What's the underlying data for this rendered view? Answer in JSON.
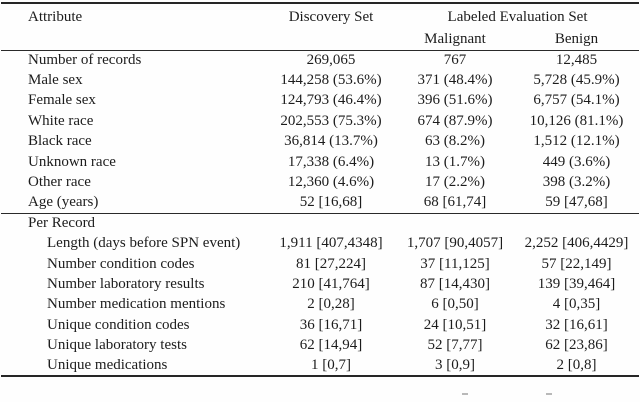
{
  "colors": {
    "background": "#fefefe",
    "text": "#1c1c1c",
    "rule": "#262626"
  },
  "table": {
    "header": {
      "attribute": "Attribute",
      "discovery": "Discovery Set",
      "evaluation_group": "Labeled Evaluation Set",
      "malignant": "Malignant",
      "benign": "Benign"
    },
    "demographics_rows": [
      {
        "label": "Number of records",
        "discovery": "269,065",
        "malignant": "767",
        "benign": "12,485"
      },
      {
        "label": "Male sex",
        "discovery": "144,258 (53.6%)",
        "malignant": "371 (48.4%)",
        "benign": "5,728 (45.9%)"
      },
      {
        "label": "Female sex",
        "discovery": "124,793 (46.4%)",
        "malignant": "396 (51.6%)",
        "benign": "6,757 (54.1%)"
      },
      {
        "label": "White race",
        "discovery": "202,553 (75.3%)",
        "malignant": "674 (87.9%)",
        "benign": "10,126 (81.1%)"
      },
      {
        "label": "Black race",
        "discovery": "36,814 (13.7%)",
        "malignant": "63 (8.2%)",
        "benign": "1,512 (12.1%)"
      },
      {
        "label": "Unknown race",
        "discovery": "17,338 (6.4%)",
        "malignant": "13 (1.7%)",
        "benign": "449 (3.6%)"
      },
      {
        "label": "Other race",
        "discovery": "12,360 (4.6%)",
        "malignant": "17 (2.2%)",
        "benign": "398 (3.2%)"
      },
      {
        "label": "Age (years)",
        "discovery": "52 [16,68]",
        "malignant": "68 [61,74]",
        "benign": "59 [47,68]"
      }
    ],
    "per_record_title": "Per Record",
    "per_record_rows": [
      {
        "label": "Length (days before SPN event)",
        "discovery": "1,911 [407,4348]",
        "malignant": "1,707 [90,4057]",
        "benign": "2,252 [406,4429]",
        "indent": true
      },
      {
        "label": "Number condition codes",
        "discovery": "81 [27,224]",
        "malignant": "37 [11,125]",
        "benign": "57 [22,149]",
        "indent": true
      },
      {
        "label": "Number laboratory results",
        "discovery": "210 [41,764]",
        "malignant": "87 [14,430]",
        "benign": "139 [39,464]",
        "indent": true
      },
      {
        "label": "Number medication mentions",
        "discovery": "2 [0,28]",
        "malignant": "6 [0,50]",
        "benign": "4 [0,35]",
        "indent": true
      },
      {
        "label": "Unique condition codes",
        "discovery": "36 [16,71]",
        "malignant": "24 [10,51]",
        "benign": "32 [16,61]",
        "indent": true
      },
      {
        "label": "Unique laboratory tests",
        "discovery": "62 [14,94]",
        "malignant": "52 [7,77]",
        "benign": "62 [23,86]",
        "indent": true
      },
      {
        "label": "Unique medications",
        "discovery": "1 [0,7]",
        "malignant": "3 [0,9]",
        "benign": "2 [0,8]",
        "indent": true
      }
    ]
  }
}
